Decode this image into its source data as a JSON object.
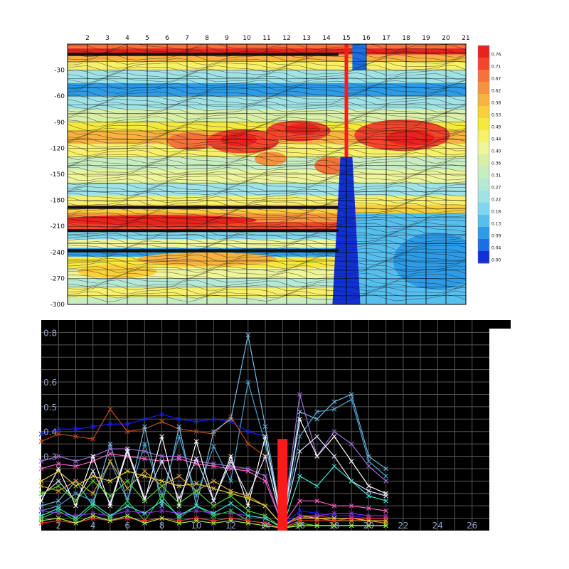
{
  "chart_data": [
    {
      "type": "heatmap",
      "x_ticks": [
        "2",
        "3",
        "4",
        "5",
        "6",
        "7",
        "8",
        "9",
        "10",
        "11",
        "12",
        "13",
        "14",
        "15",
        "16",
        "17",
        "18",
        "19",
        "20",
        "21"
      ],
      "y_ticks": [
        "-30",
        "-60",
        "-90",
        "-120",
        "-150",
        "-180",
        "-210",
        "-240",
        "-270",
        "-300"
      ],
      "xlim": [
        1,
        21
      ],
      "ylim": [
        -300,
        0
      ],
      "colorbar": {
        "labels": [
          "0.76",
          "0.71",
          "0.67",
          "0.62",
          "0.58",
          "0.53",
          "0.49",
          "0.44",
          "0.40",
          "0.36",
          "0.31",
          "0.27",
          "0.22",
          "0.18",
          "0.13",
          "0.09",
          "0.04",
          "0.00"
        ],
        "colors": [
          "#e8231e",
          "#f2452c",
          "#f5733a",
          "#f59440",
          "#f7b23f",
          "#fbcf3b",
          "#f5e83f",
          "#f7f06a",
          "#eef59a",
          "#d9f0a8",
          "#c7edc0",
          "#b5e9d5",
          "#a0e3e6",
          "#7fd6ef",
          "#56bfee",
          "#2d9be6",
          "#1a6fe2",
          "#1230d6"
        ]
      },
      "grid": true,
      "red_marker_x": 15
    },
    {
      "type": "line",
      "x_ticks": [
        "2",
        "4",
        "6",
        "8",
        "10",
        "12",
        "14",
        "16",
        "18",
        "20",
        "22",
        "24",
        "26"
      ],
      "y_ticks": [
        "0.8",
        "0.6",
        "0.5",
        "0.4",
        "0.3"
      ],
      "xlim": [
        1,
        27
      ],
      "ylim": [
        0,
        0.85
      ],
      "grid": true,
      "x": [
        1,
        2,
        3,
        4,
        5,
        6,
        7,
        8,
        9,
        10,
        11,
        12,
        13,
        14,
        15,
        16,
        17,
        18,
        19,
        20,
        21
      ],
      "red_bar": {
        "x": 15,
        "value": 0.37
      },
      "series": [
        {
          "color": "#1a1aff",
          "values": [
            0.39,
            0.41,
            0.41,
            0.42,
            0.43,
            0.43,
            0.45,
            0.47,
            0.45,
            0.44,
            0.45,
            0.44,
            0.4,
            0.38,
            0.02,
            0.08,
            0.07,
            0.06,
            0.06,
            0.05,
            0.05
          ]
        },
        {
          "color": "#c24a1a",
          "values": [
            0.36,
            0.39,
            0.38,
            0.37,
            0.49,
            0.4,
            0.41,
            0.44,
            0.41,
            0.4,
            0.39,
            0.46,
            0.35,
            0.3,
            0.02,
            0.05,
            0.06,
            0.05,
            0.05,
            0.04,
            0.04
          ]
        },
        {
          "color": "#6fb8e0",
          "values": [
            0.1,
            0.12,
            0.2,
            0.1,
            0.35,
            0.12,
            0.42,
            0.1,
            0.42,
            0.1,
            0.4,
            0.45,
            0.79,
            0.42,
            0.02,
            0.48,
            0.45,
            0.52,
            0.55,
            0.3,
            0.25
          ]
        },
        {
          "color": "#4aa0c8",
          "values": [
            0.08,
            0.1,
            0.15,
            0.12,
            0.28,
            0.12,
            0.35,
            0.14,
            0.38,
            0.14,
            0.34,
            0.2,
            0.6,
            0.35,
            0.02,
            0.38,
            0.48,
            0.49,
            0.53,
            0.28,
            0.22
          ]
        },
        {
          "color": "#a06cd8",
          "values": [
            0.28,
            0.3,
            0.28,
            0.3,
            0.33,
            0.33,
            0.32,
            0.3,
            0.3,
            0.28,
            0.27,
            0.26,
            0.25,
            0.22,
            0.02,
            0.55,
            0.3,
            0.4,
            0.35,
            0.26,
            0.2
          ]
        },
        {
          "color": "#ff5fc8",
          "values": [
            0.25,
            0.27,
            0.26,
            0.28,
            0.31,
            0.3,
            0.29,
            0.28,
            0.29,
            0.27,
            0.26,
            0.25,
            0.24,
            0.2,
            0.02,
            0.12,
            0.12,
            0.1,
            0.1,
            0.09,
            0.08
          ]
        },
        {
          "color": "#ffffff",
          "values": [
            0.12,
            0.25,
            0.1,
            0.3,
            0.1,
            0.32,
            0.12,
            0.38,
            0.1,
            0.36,
            0.12,
            0.3,
            0.1,
            0.38,
            0.02,
            0.45,
            0.3,
            0.38,
            0.28,
            0.18,
            0.15
          ]
        },
        {
          "color": "#e0e0ff",
          "values": [
            0.14,
            0.2,
            0.12,
            0.24,
            0.11,
            0.33,
            0.13,
            0.28,
            0.13,
            0.29,
            0.12,
            0.28,
            0.14,
            0.3,
            0.02,
            0.32,
            0.38,
            0.3,
            0.2,
            0.16,
            0.14
          ]
        },
        {
          "color": "#d6a12a",
          "values": [
            0.18,
            0.16,
            0.2,
            0.15,
            0.28,
            0.17,
            0.24,
            0.18,
            0.22,
            0.16,
            0.2,
            0.16,
            0.14,
            0.1,
            0.02,
            0.05,
            0.05,
            0.04,
            0.04,
            0.04,
            0.03
          ]
        },
        {
          "color": "#e0d03a",
          "values": [
            0.2,
            0.24,
            0.18,
            0.22,
            0.2,
            0.24,
            0.22,
            0.2,
            0.18,
            0.19,
            0.17,
            0.15,
            0.13,
            0.1,
            0.02,
            0.06,
            0.05,
            0.05,
            0.05,
            0.04,
            0.04
          ]
        },
        {
          "color": "#5ad02a",
          "values": [
            0.15,
            0.18,
            0.12,
            0.2,
            0.14,
            0.2,
            0.12,
            0.18,
            0.11,
            0.16,
            0.1,
            0.14,
            0.08,
            0.06,
            0.01,
            0.03,
            0.02,
            0.02,
            0.02,
            0.02,
            0.02
          ]
        },
        {
          "color": "#2ecc40",
          "values": [
            0.05,
            0.08,
            0.04,
            0.1,
            0.05,
            0.12,
            0.04,
            0.14,
            0.05,
            0.1,
            0.06,
            0.08,
            0.04,
            0.03,
            0.01,
            0.02,
            0.02,
            0.02,
            0.02,
            0.02,
            0.02
          ]
        },
        {
          "color": "#8a2be2",
          "values": [
            0.08,
            0.07,
            0.06,
            0.07,
            0.06,
            0.08,
            0.07,
            0.08,
            0.07,
            0.08,
            0.07,
            0.07,
            0.06,
            0.05,
            0.01,
            0.06,
            0.06,
            0.07,
            0.07,
            0.06,
            0.06
          ]
        },
        {
          "color": "#ff3030",
          "values": [
            0.03,
            0.04,
            0.03,
            0.05,
            0.04,
            0.05,
            0.04,
            0.05,
            0.04,
            0.05,
            0.04,
            0.05,
            0.04,
            0.03,
            0.01,
            0.04,
            0.04,
            0.04,
            0.05,
            0.05,
            0.05
          ]
        },
        {
          "color": "#40e0d0",
          "values": [
            0.06,
            0.09,
            0.05,
            0.11,
            0.06,
            0.1,
            0.07,
            0.12,
            0.06,
            0.1,
            0.07,
            0.11,
            0.06,
            0.05,
            0.01,
            0.22,
            0.18,
            0.26,
            0.2,
            0.14,
            0.12
          ]
        },
        {
          "color": "#b0f040",
          "values": [
            0.04,
            0.05,
            0.03,
            0.06,
            0.04,
            0.06,
            0.03,
            0.05,
            0.03,
            0.04,
            0.03,
            0.04,
            0.03,
            0.02,
            0.01,
            0.02,
            0.02,
            0.02,
            0.02,
            0.02,
            0.02
          ]
        }
      ]
    }
  ]
}
